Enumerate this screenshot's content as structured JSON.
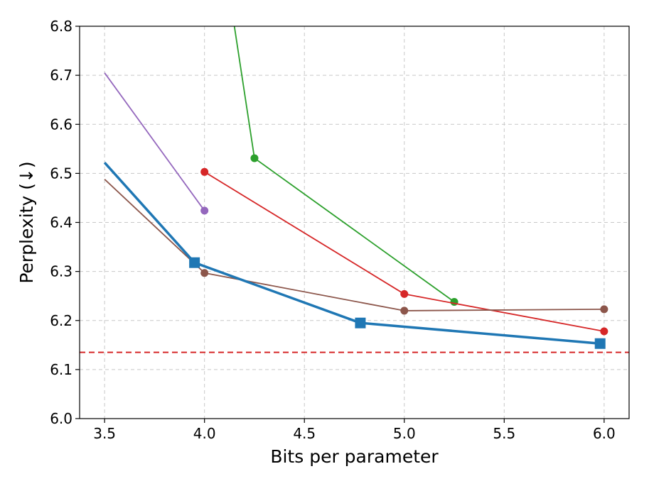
{
  "chart_data": {
    "type": "line",
    "title": "",
    "xlabel": "Bits per parameter",
    "ylabel": "Perplexity (↓)",
    "xlim": [
      3.375,
      6.125
    ],
    "ylim": [
      6.0,
      6.8
    ],
    "xticks": [
      3.5,
      4.0,
      4.5,
      5.0,
      5.5,
      6.0
    ],
    "xtick_labels": [
      "3.5",
      "4.0",
      "4.5",
      "5.0",
      "5.5",
      "6.0"
    ],
    "yticks": [
      6.0,
      6.1,
      6.2,
      6.3,
      6.4,
      6.5,
      6.6,
      6.7,
      6.8
    ],
    "ytick_labels": [
      "6.0",
      "6.1",
      "6.2",
      "6.3",
      "6.4",
      "6.5",
      "6.6",
      "6.7",
      "6.8"
    ],
    "grid": true,
    "reference_line": {
      "y": 6.135,
      "color": "#d62728",
      "style": "dashed"
    },
    "series": [
      {
        "color": "#9467bd",
        "marker": "circle",
        "markers_on": [
          false,
          true
        ],
        "line_width": "thin",
        "points": [
          [
            3.5,
            6.705
          ],
          [
            4.0,
            6.424
          ]
        ]
      },
      {
        "color": "#2ca02c",
        "marker": "circle",
        "markers_on": [
          false,
          true,
          true
        ],
        "line_width": "thin",
        "points": [
          [
            4.0,
            7.2
          ],
          [
            4.25,
            6.531
          ],
          [
            5.25,
            6.238
          ]
        ]
      },
      {
        "color": "#d62728",
        "marker": "circle",
        "markers_on": [
          true,
          true,
          true
        ],
        "line_width": "thin",
        "points": [
          [
            4.0,
            6.503
          ],
          [
            5.0,
            6.254
          ],
          [
            6.0,
            6.178
          ]
        ]
      },
      {
        "color": "#8c564b",
        "marker": "circle",
        "markers_on": [
          false,
          true,
          true,
          true
        ],
        "line_width": "thin",
        "points": [
          [
            3.5,
            6.488
          ],
          [
            4.0,
            6.297
          ],
          [
            5.0,
            6.22
          ],
          [
            6.0,
            6.223
          ]
        ]
      },
      {
        "color": "#1f77b4",
        "marker": "square",
        "markers_on": [
          false,
          true,
          true,
          true
        ],
        "line_width": "thick",
        "points": [
          [
            3.5,
            6.522
          ],
          [
            3.95,
            6.318
          ],
          [
            4.78,
            6.195
          ],
          [
            5.98,
            6.153
          ]
        ]
      }
    ]
  }
}
